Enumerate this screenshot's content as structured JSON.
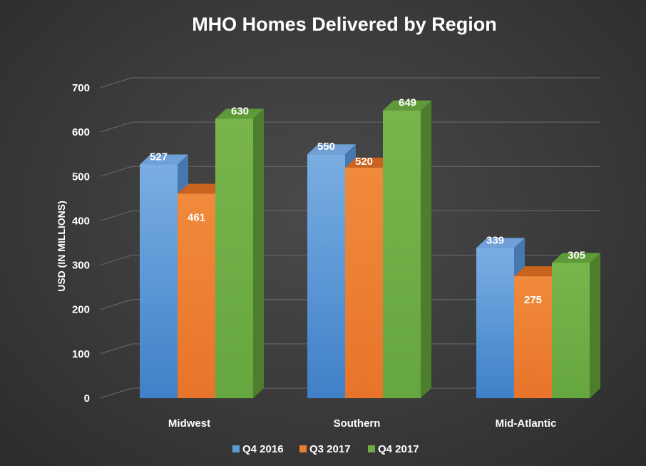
{
  "chart_data": {
    "type": "bar",
    "title": "MHO Homes Delivered  by Region",
    "ylabel": "USD (IN MILLIONS)",
    "xlabel": "",
    "categories": [
      "Midwest",
      "Southern",
      "Mid-Atlantic"
    ],
    "series": [
      {
        "name": "Q4 2016",
        "values": [
          527,
          550,
          339
        ],
        "color": "#5b9bd5"
      },
      {
        "name": "Q3 2017",
        "values": [
          461,
          520,
          275
        ],
        "color": "#ed7d31"
      },
      {
        "name": "Q4 2017",
        "values": [
          630,
          649,
          305
        ],
        "color": "#70ad47"
      }
    ],
    "ylim": [
      0,
      700
    ],
    "yticks": [
      0,
      100,
      200,
      300,
      400,
      500,
      600,
      700
    ],
    "grid": true,
    "legend_position": "bottom",
    "style": "3d-clustered-column"
  }
}
